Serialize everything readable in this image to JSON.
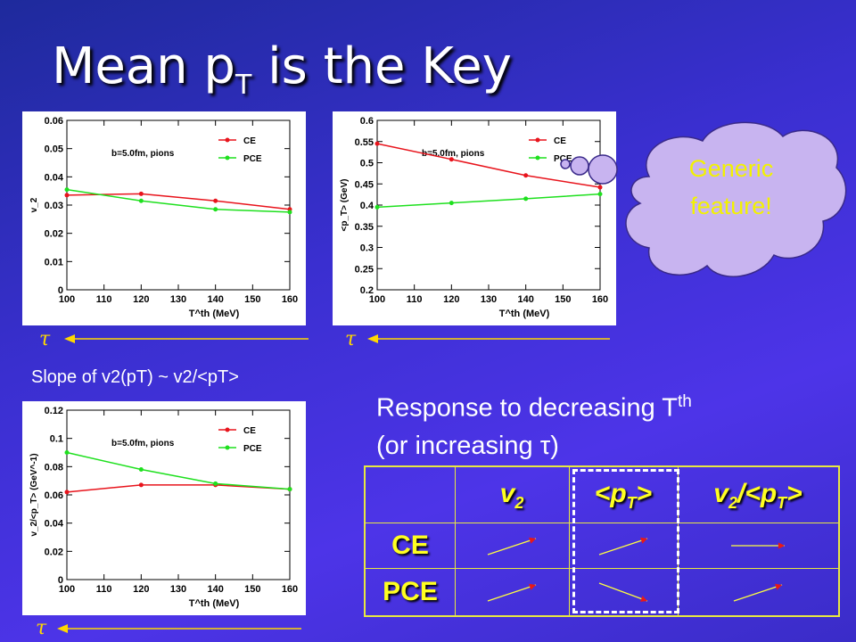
{
  "slide": {
    "title_main": "Mean p",
    "title_sub": "T",
    "title_rest": " is the Key",
    "tau": "τ",
    "slope_text": "Slope of v2(pT) ~ v2/<pT>",
    "response_line1": "Response to decreasing T",
    "response_line1_sup": "th",
    "response_line2": "(or increasing τ)",
    "cloud_line1": "Generic",
    "cloud_line2": "feature!"
  },
  "table": {
    "col_headers": [
      {
        "main": "v",
        "sub": "2",
        "rest": ""
      },
      {
        "main": "<p",
        "sub": "T",
        "rest": ">"
      },
      {
        "main": "v",
        "sub": "2",
        "rest": "/<p",
        "sub2": "T",
        "rest2": ">"
      }
    ],
    "rows": [
      {
        "label": "CE",
        "trends": [
          "up",
          "up",
          "flat"
        ]
      },
      {
        "label": "PCE",
        "trends": [
          "up",
          "down",
          "up"
        ]
      }
    ],
    "highlight_column": 1
  },
  "colors": {
    "ce": "#e8141c",
    "pce": "#1ee01e",
    "text_yellow": "#ffff20",
    "cloud": "#c8b4f0"
  },
  "chart_data": [
    {
      "type": "line",
      "x": [
        100,
        120,
        140,
        160
      ],
      "series": [
        {
          "name": "CE",
          "values": [
            0.0335,
            0.034,
            0.0315,
            0.0285
          ]
        },
        {
          "name": "PCE",
          "values": [
            0.0355,
            0.0315,
            0.0285,
            0.0275
          ]
        }
      ],
      "xlabel": "T^th (MeV)",
      "ylabel": "v_2",
      "xlim": [
        100,
        160
      ],
      "ylim": [
        0,
        0.06
      ],
      "xticks": [
        100,
        110,
        120,
        130,
        140,
        150,
        160
      ],
      "yticks": [
        0,
        0.01,
        0.02,
        0.03,
        0.04,
        0.05,
        0.06
      ],
      "annotation": "b=5.0fm, pions",
      "legend": "top-right"
    },
    {
      "type": "line",
      "x": [
        100,
        120,
        140,
        160
      ],
      "series": [
        {
          "name": "CE",
          "values": [
            0.545,
            0.508,
            0.47,
            0.442
          ]
        },
        {
          "name": "PCE",
          "values": [
            0.395,
            0.405,
            0.415,
            0.426
          ]
        }
      ],
      "xlabel": "T^th (MeV)",
      "ylabel": "<p_T> (GeV)",
      "xlim": [
        100,
        160
      ],
      "ylim": [
        0.2,
        0.6
      ],
      "xticks": [
        100,
        110,
        120,
        130,
        140,
        150,
        160
      ],
      "yticks": [
        0.2,
        0.25,
        0.3,
        0.35,
        0.4,
        0.45,
        0.5,
        0.55,
        0.6
      ],
      "annotation": "b=5.0fm, pions",
      "legend": "top-right"
    },
    {
      "type": "line",
      "x": [
        100,
        120,
        140,
        160
      ],
      "series": [
        {
          "name": "CE",
          "values": [
            0.062,
            0.067,
            0.067,
            0.064
          ]
        },
        {
          "name": "PCE",
          "values": [
            0.09,
            0.078,
            0.068,
            0.064
          ]
        }
      ],
      "xlabel": "T^th (MeV)",
      "ylabel": "v_2/<p_T> (GeV^-1)",
      "xlim": [
        100,
        160
      ],
      "ylim": [
        0,
        0.12
      ],
      "xticks": [
        100,
        110,
        120,
        130,
        140,
        150,
        160
      ],
      "yticks": [
        0,
        0.02,
        0.04,
        0.06,
        0.08,
        0.1,
        0.12
      ],
      "annotation": "b=5.0fm, pions",
      "legend": "top-right"
    }
  ]
}
